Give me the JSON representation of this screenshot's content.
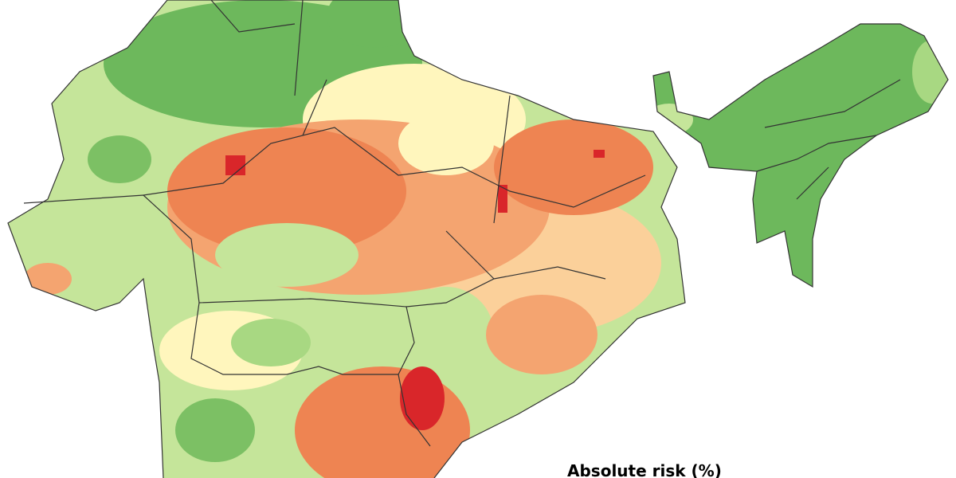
{
  "legend": {
    "title": "Absolute risk (%)"
  }
}
